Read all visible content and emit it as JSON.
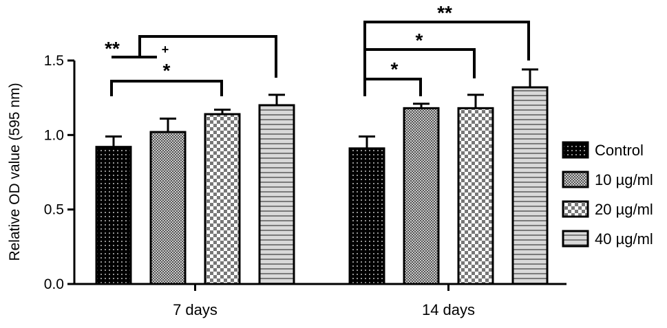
{
  "chart_data": {
    "type": "bar",
    "title": "",
    "xlabel": "",
    "ylabel": "Relative OD value (595 nm)",
    "ylim": [
      0,
      1.5
    ],
    "yticks": [
      "0.0",
      "0.5",
      "1.0",
      "1.5"
    ],
    "grid": false,
    "legend_position": "right",
    "categories": [
      "7 days",
      "14 days"
    ],
    "series": [
      {
        "name": "Control",
        "pattern": "dots",
        "fill": "#111111",
        "values": [
          0.92,
          0.91
        ],
        "errors": [
          0.07,
          0.08
        ]
      },
      {
        "name": "10 µg/ml",
        "pattern": "fine-checker",
        "fill": "#666666",
        "values": [
          1.02,
          1.18
        ],
        "errors": [
          0.09,
          0.03
        ]
      },
      {
        "name": "20 µg/ml",
        "pattern": "checker",
        "fill": "#cccccc",
        "values": [
          1.14,
          1.18
        ],
        "errors": [
          0.03,
          0.09
        ]
      },
      {
        "name": "40 µg/ml",
        "pattern": "hstripes",
        "fill": "#bbbbbb",
        "values": [
          1.2,
          1.32
        ],
        "errors": [
          0.07,
          0.12
        ]
      }
    ],
    "annotations": [
      {
        "group": 0,
        "from": 0,
        "to": 1,
        "label": "**"
      },
      {
        "group": 0,
        "from": 0,
        "to": 3,
        "label": "+"
      },
      {
        "group": 0,
        "from": 0,
        "to": 2,
        "label": "*"
      },
      {
        "group": 1,
        "from": 0,
        "to": 3,
        "label": "**"
      },
      {
        "group": 1,
        "from": 0,
        "to": 2,
        "label": "*"
      },
      {
        "group": 1,
        "from": 0,
        "to": 1,
        "label": "*"
      }
    ]
  }
}
